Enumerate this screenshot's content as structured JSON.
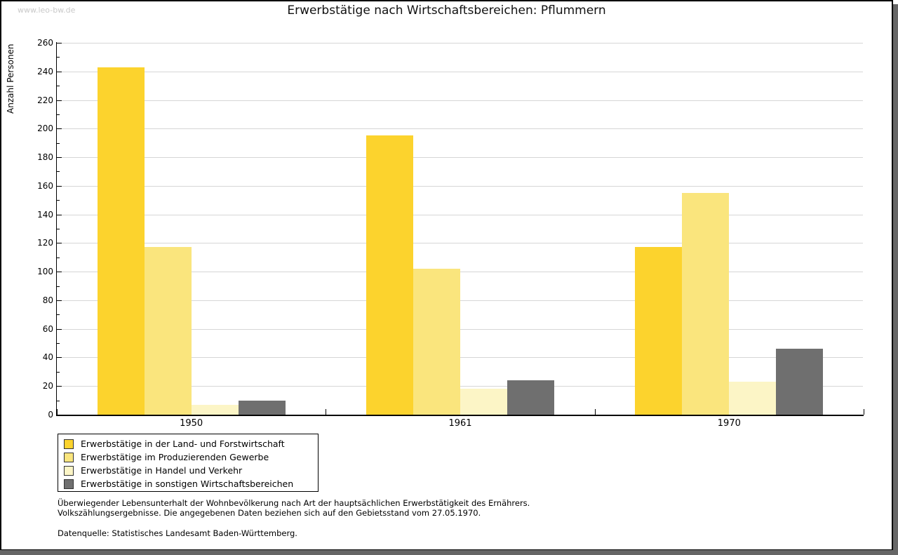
{
  "watermark": "www.leo-bw.de",
  "title": "Erwerbstätige nach Wirtschaftsbereichen: Pflummern",
  "chart_data": {
    "type": "bar",
    "title": "Erwerbstätige nach Wirtschaftsbereichen: Pflummern",
    "xlabel": "",
    "ylabel": "Anzahl Personen",
    "categories": [
      "1950",
      "1961",
      "1970"
    ],
    "series": [
      {
        "name": "Erwerbstätige in der Land- und Forstwirtschaft",
        "color": "#FCD32D",
        "values": [
          243,
          195,
          117
        ]
      },
      {
        "name": "Erwerbstätige im Produzierenden Gewerbe",
        "color": "#FAE57D",
        "values": [
          117,
          102,
          155
        ]
      },
      {
        "name": "Erwerbstätige in Handel und Verkehr",
        "color": "#FCF5C6",
        "values": [
          7,
          18,
          23
        ]
      },
      {
        "name": "Erwerbstätige in sonstigen Wirtschaftsbereichen",
        "color": "#6F6F6F",
        "values": [
          10,
          24,
          46
        ]
      }
    ],
    "ylim": [
      0,
      260
    ],
    "ytick_major": 20,
    "ytick_minor": 10,
    "grid": true,
    "legend_position": "bottom-left"
  },
  "footnotes": {
    "line1": "Überwiegender Lebensunterhalt der Wohnbevölkerung nach Art der hauptsächlichen Erwerbstätigkeit des Ernährers.",
    "line2": "Volkszählungsergebnisse. Die angegebenen Daten beziehen sich auf den Gebietsstand vom 27.05.1970.",
    "source": "Datenquelle: Statistisches Landesamt Baden-Württemberg."
  },
  "colors": {
    "grid": "#D6D6D6",
    "axis": "#000000",
    "watermark": "#C9C9C9",
    "frame_shadow": "#666666"
  }
}
